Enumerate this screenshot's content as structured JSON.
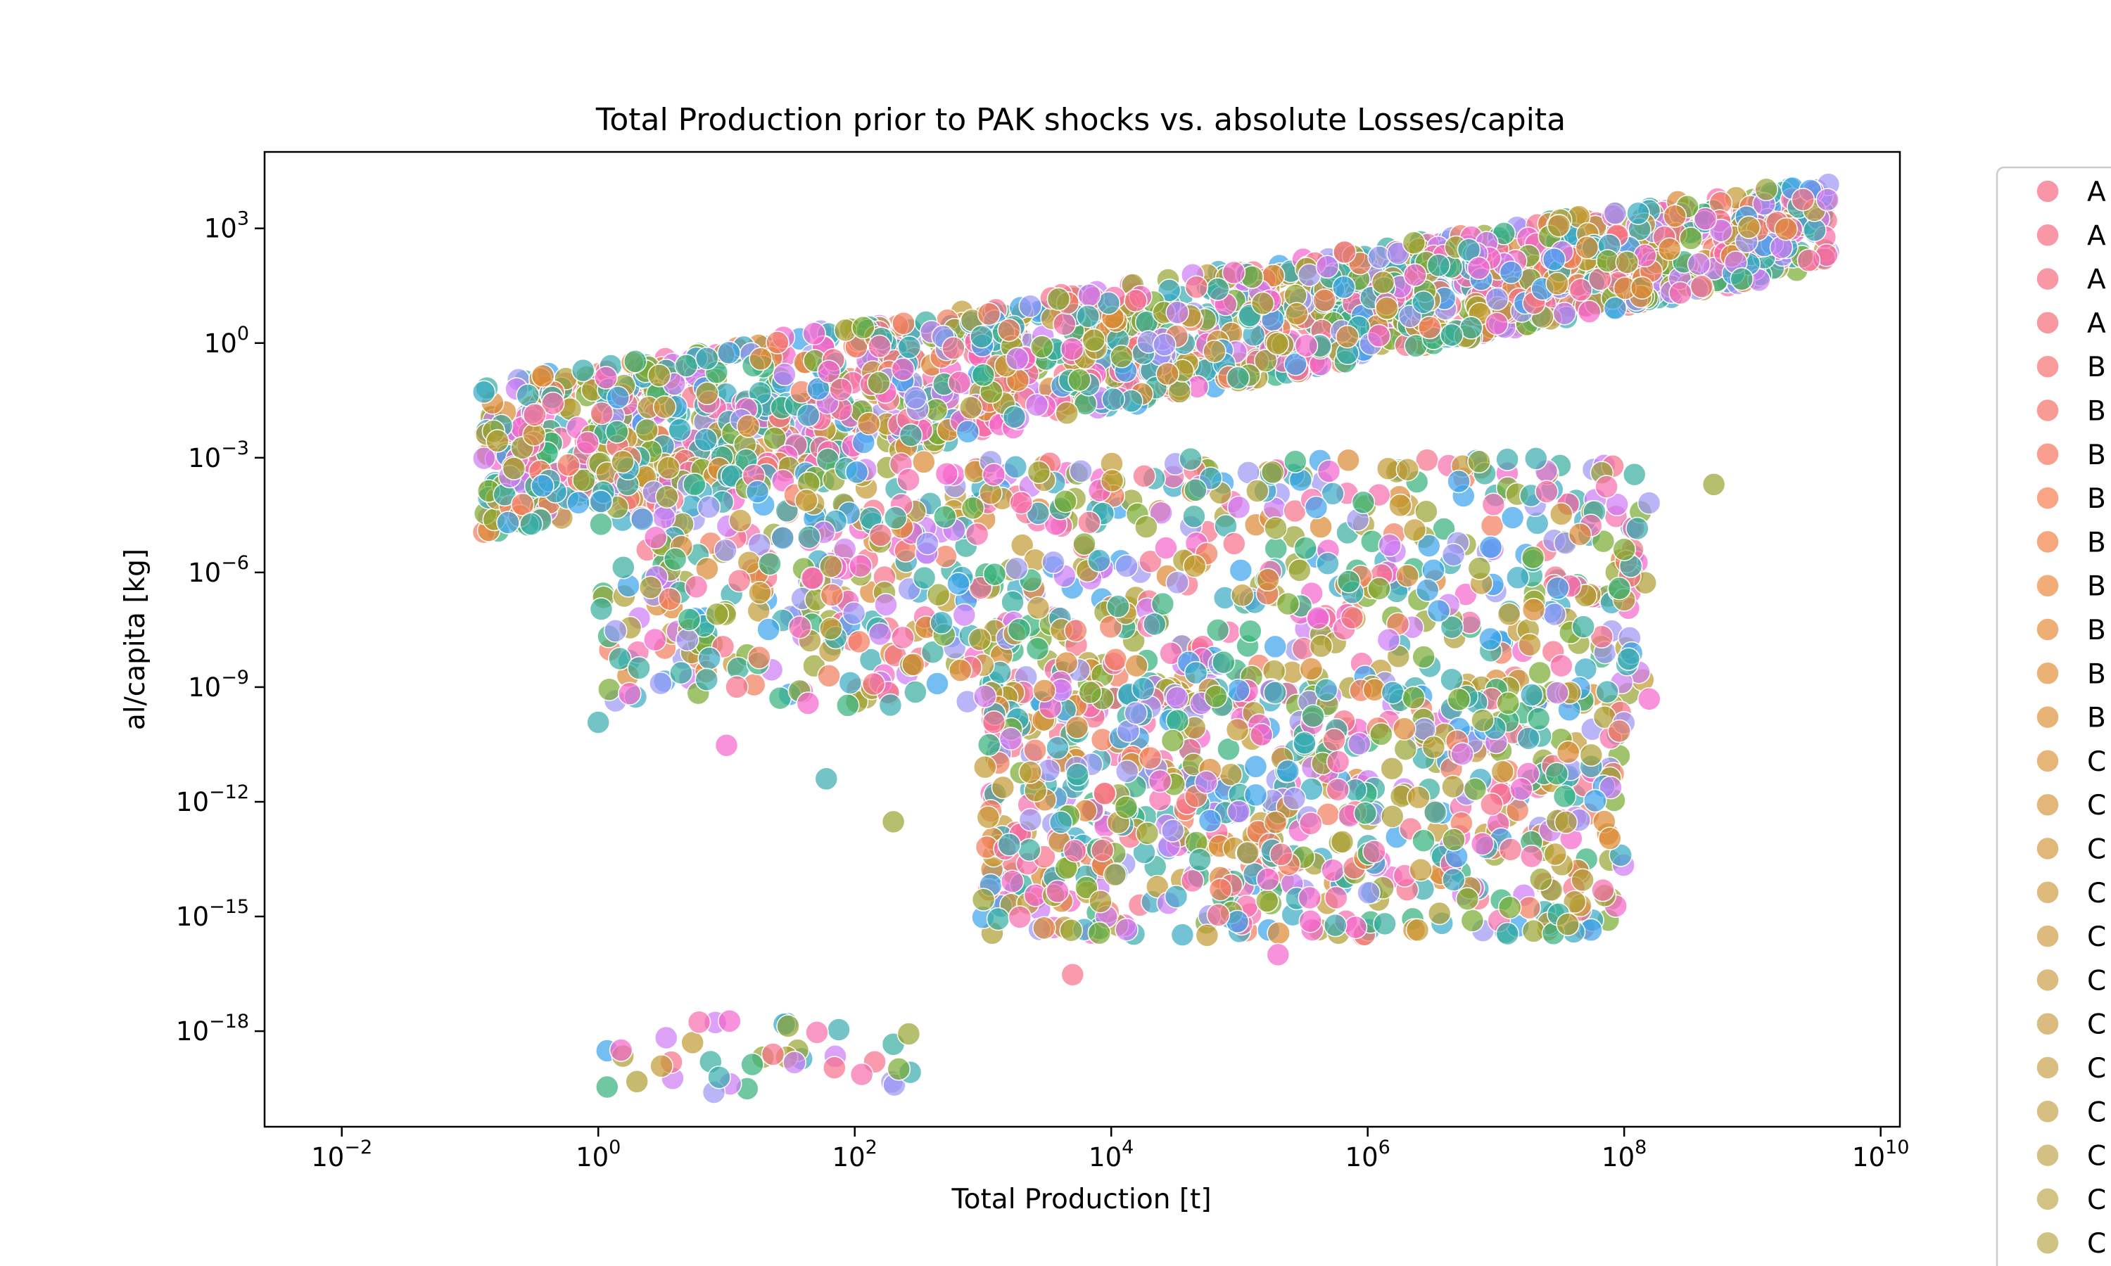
{
  "chart_data": {
    "type": "scatter",
    "title": "Total Production prior to PAK shocks vs. absolute Losses/capita",
    "xlabel": "Total Production [t]",
    "ylabel": "al/capita [kg]",
    "xscale": "log",
    "yscale": "log",
    "xlim": [
      0.0025,
      14125375446
    ],
    "ylim": [
      3.16e-21,
      100000.0
    ],
    "x_tick_labels": [
      {
        "base": "10",
        "exp": "−2",
        "value": 0.01
      },
      {
        "base": "10",
        "exp": "0",
        "value": 1
      },
      {
        "base": "10",
        "exp": "2",
        "value": 100
      },
      {
        "base": "10",
        "exp": "4",
        "value": 10000
      },
      {
        "base": "10",
        "exp": "6",
        "value": 1000000
      },
      {
        "base": "10",
        "exp": "8",
        "value": 100000000
      },
      {
        "base": "10",
        "exp": "10",
        "value": 10000000000
      }
    ],
    "y_tick_labels": [
      {
        "base": "10",
        "exp": "3",
        "value": 1000.0
      },
      {
        "base": "10",
        "exp": "0",
        "value": 1
      },
      {
        "base": "10",
        "exp": "−3",
        "value": 0.001
      },
      {
        "base": "10",
        "exp": "−6",
        "value": 1e-06
      },
      {
        "base": "10",
        "exp": "−9",
        "value": 1e-09
      },
      {
        "base": "10",
        "exp": "−12",
        "value": 1e-12
      },
      {
        "base": "10",
        "exp": "−15",
        "value": 1e-15
      },
      {
        "base": "10",
        "exp": "−18",
        "value": 1e-18
      }
    ],
    "grid": false,
    "legend_position": "outside-right",
    "legend_entries": [
      {
        "label": "A",
        "color": "#f77189"
      },
      {
        "label": "A",
        "color": "#f7738a"
      },
      {
        "label": "A",
        "color": "#f67585"
      },
      {
        "label": "A",
        "color": "#f67580"
      },
      {
        "label": "B",
        "color": "#f7787a"
      },
      {
        "label": "B",
        "color": "#f77a72"
      },
      {
        "label": "B",
        "color": "#f77d6a"
      },
      {
        "label": "B",
        "color": "#f5855c"
      },
      {
        "label": "B",
        "color": "#f38b52"
      },
      {
        "label": "B",
        "color": "#ee9048"
      },
      {
        "label": "B",
        "color": "#e99445"
      },
      {
        "label": "B",
        "color": "#e39845"
      },
      {
        "label": "B",
        "color": "#df9b48"
      },
      {
        "label": "C",
        "color": "#dc9d4a"
      },
      {
        "label": "C",
        "color": "#d99f4c"
      },
      {
        "label": "C",
        "color": "#d7a04e"
      },
      {
        "label": "C",
        "color": "#d5a250"
      },
      {
        "label": "C",
        "color": "#d3a352"
      },
      {
        "label": "C",
        "color": "#d0a553"
      },
      {
        "label": "C",
        "color": "#cea655"
      },
      {
        "label": "C",
        "color": "#cca856"
      },
      {
        "label": "C",
        "color": "#c9a957"
      },
      {
        "label": "C",
        "color": "#c6ab58"
      },
      {
        "label": "C",
        "color": "#c3ad5a"
      },
      {
        "label": "C",
        "color": "#bfaf5b"
      },
      {
        "label": "C",
        "color": "#b9b15c"
      }
    ],
    "series_palette": [
      "#f77189",
      "#f27c5e",
      "#dc8932",
      "#c39a32",
      "#ae9d31",
      "#97a431",
      "#77ab31",
      "#33b07a",
      "#35ad9c",
      "#36abae",
      "#38a9c5",
      "#3ba3ec",
      "#9b96f4",
      "#cc7af4",
      "#f565cc",
      "#f66bad"
    ],
    "point_clusters": [
      {
        "desc": "upper wedge",
        "xlog": [
          -0.9,
          9.6
        ],
        "ylog_low_at_xmin": -5.0,
        "ylog_high_at_xmin": -1.0,
        "ylog_low_at_xmax": 2.0,
        "ylog_high_at_xmax": 4.3,
        "count": 1800
      },
      {
        "desc": "mid band",
        "xlog": [
          0,
          8.2
        ],
        "ylog": [
          -9.5,
          -3
        ],
        "count": 900
      },
      {
        "desc": "lower band",
        "xlog": [
          3,
          8
        ],
        "ylog": [
          -15.5,
          -9
        ],
        "count": 700
      },
      {
        "desc": "bottom group",
        "xlog": [
          0,
          2.5
        ],
        "ylog": [
          -19.6,
          -17.6
        ],
        "count": 40
      }
    ],
    "highlight_points": [
      {
        "x": 1,
        "y": 1.2e-10
      },
      {
        "x": 10,
        "y": 3e-11
      },
      {
        "x": 60,
        "y": 4e-12
      },
      {
        "x": 200,
        "y": 3e-13
      },
      {
        "x": 3000,
        "y": 5e-16
      },
      {
        "x": 200000,
        "y": 1e-16
      },
      {
        "x": 5000,
        "y": 3e-17
      },
      {
        "x": 500000000,
        "y": 0.0002
      },
      {
        "x": 100000000,
        "y": 4e-06
      }
    ]
  }
}
